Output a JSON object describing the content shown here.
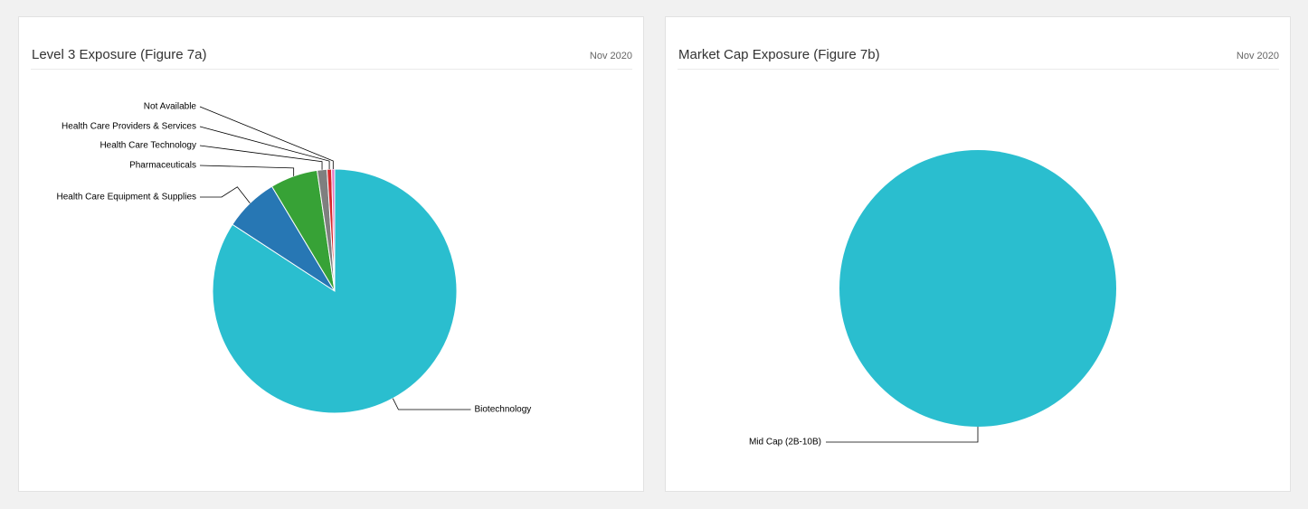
{
  "panels": [
    {
      "title": "Level 3 Exposure (Figure 7a)",
      "date": "Nov 2020"
    },
    {
      "title": "Market Cap Exposure (Figure 7b)",
      "date": "Nov 2020"
    }
  ],
  "chart_data": [
    {
      "type": "pie",
      "title": "Level 3 Exposure (Figure 7a)",
      "slices": [
        {
          "label": "Biotechnology",
          "value": 84.2,
          "color": "#2abecf"
        },
        {
          "label": "Health Care Equipment & Supplies",
          "value": 7.2,
          "color": "#2777b4"
        },
        {
          "label": "Pharmaceuticals",
          "value": 6.3,
          "color": "#37a236"
        },
        {
          "label": "Health Care Technology",
          "value": 1.3,
          "color": "#7f7f7f"
        },
        {
          "label": "Health Care Providers & Services",
          "value": 0.6,
          "color": "#d6282b"
        },
        {
          "label": "Not Available",
          "value": 0.4,
          "color": "#e377c2"
        }
      ]
    },
    {
      "type": "pie",
      "title": "Market Cap Exposure (Figure 7b)",
      "slices": [
        {
          "label": "Mid Cap (2B-10B)",
          "value": 100,
          "color": "#2abecf"
        }
      ]
    }
  ]
}
